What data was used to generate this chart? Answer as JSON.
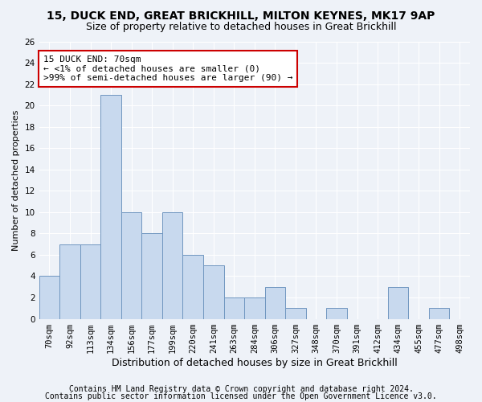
{
  "title1": "15, DUCK END, GREAT BRICKHILL, MILTON KEYNES, MK17 9AP",
  "title2": "Size of property relative to detached houses in Great Brickhill",
  "xlabel": "Distribution of detached houses by size in Great Brickhill",
  "ylabel": "Number of detached properties",
  "categories": [
    "70sqm",
    "92sqm",
    "113sqm",
    "134sqm",
    "156sqm",
    "177sqm",
    "199sqm",
    "220sqm",
    "241sqm",
    "263sqm",
    "284sqm",
    "306sqm",
    "327sqm",
    "348sqm",
    "370sqm",
    "391sqm",
    "412sqm",
    "434sqm",
    "455sqm",
    "477sqm",
    "498sqm"
  ],
  "values": [
    4,
    7,
    7,
    21,
    10,
    8,
    10,
    6,
    5,
    2,
    2,
    3,
    1,
    0,
    1,
    0,
    0,
    3,
    0,
    1,
    0
  ],
  "bar_color": "#c8d9ee",
  "bar_edge_color": "#7096c0",
  "annotation_title": "15 DUCK END: 70sqm",
  "annotation_line1": "← <1% of detached houses are smaller (0)",
  "annotation_line2": ">99% of semi-detached houses are larger (90) →",
  "annotation_box_color": "#ffffff",
  "annotation_box_edge": "#cc0000",
  "ylim": [
    0,
    26
  ],
  "yticks": [
    0,
    2,
    4,
    6,
    8,
    10,
    12,
    14,
    16,
    18,
    20,
    22,
    24,
    26
  ],
  "footer1": "Contains HM Land Registry data © Crown copyright and database right 2024.",
  "footer2": "Contains public sector information licensed under the Open Government Licence v3.0.",
  "bg_color": "#eef2f8",
  "grid_color": "#ffffff",
  "title1_fontsize": 10,
  "title2_fontsize": 9,
  "xlabel_fontsize": 9,
  "ylabel_fontsize": 8,
  "tick_fontsize": 7.5,
  "annotation_fontsize": 8,
  "footer_fontsize": 7
}
